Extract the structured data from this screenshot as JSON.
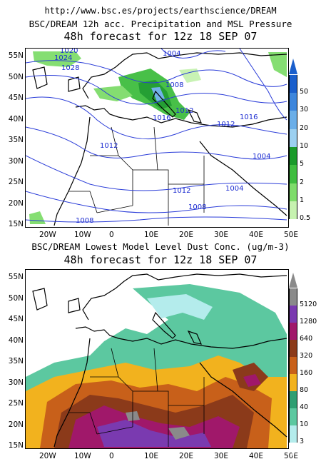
{
  "header": {
    "url": "http://www.bsc.es/projects/earthscience/DREAM"
  },
  "panel1": {
    "title": "BSC/DREAM 12h acc. Precipitation and MSL Pressure",
    "subtitle": "48h forecast for 12z 18 SEP 07",
    "isobar_labels": [
      "1020",
      "1024",
      "1028",
      "1004",
      "1008",
      "1012",
      "1016",
      "1016",
      "1012",
      "1012",
      "1004",
      "1012",
      "1004",
      "1008",
      "1008"
    ],
    "colorbar": {
      "labels": [
        "50",
        "30",
        "20",
        "10",
        "5",
        "2",
        "1",
        "0.5"
      ],
      "colors": [
        "#1a5fcc",
        "#3d86dc",
        "#6aaee8",
        "#9cd0f0",
        "#1a9a2a",
        "#3fbd3f",
        "#7edc6a",
        "#c6f2b0"
      ]
    }
  },
  "panel2": {
    "title": "BSC/DREAM Lowest Model Level Dust Conc. (ug/m-3)",
    "subtitle": "48h forecast for 12z 18 SEP 07",
    "colorbar": {
      "labels": [
        "5120",
        "1280",
        "640",
        "320",
        "160",
        "80",
        "40",
        "10",
        "3"
      ],
      "colors": [
        "#8a8a8a",
        "#7a3ab0",
        "#a0186a",
        "#8b3a1a",
        "#c8601a",
        "#f2b21e",
        "#2e9e72",
        "#5cc8a0",
        "#b4ecec"
      ]
    }
  },
  "axes": {
    "lat_ticks": [
      "55N",
      "50N",
      "45N",
      "40N",
      "35N",
      "30N",
      "25N",
      "20N",
      "15N"
    ],
    "lon_ticks": [
      "20W",
      "10W",
      "0",
      "10E",
      "20E",
      "30E",
      "40E",
      "50E"
    ]
  }
}
